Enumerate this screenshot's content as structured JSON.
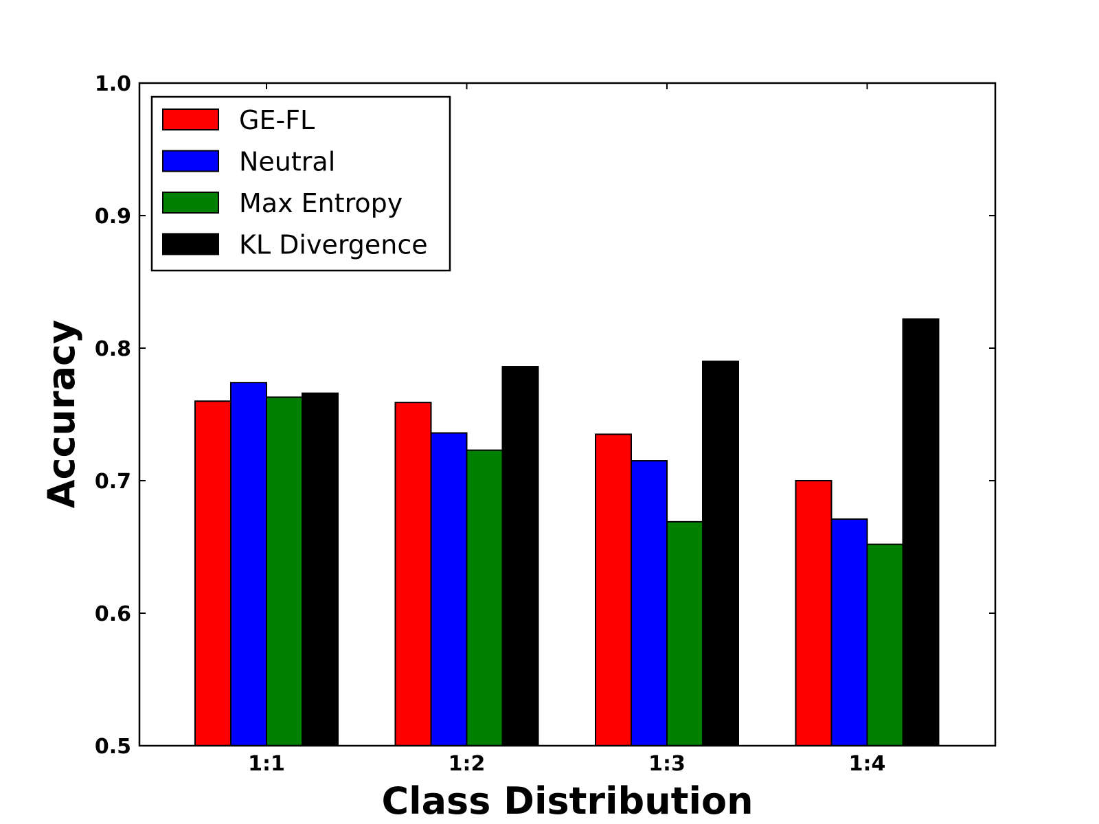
{
  "chart_data": {
    "type": "bar",
    "title": "",
    "xlabel": "Class Distribution",
    "ylabel": "Accuracy",
    "ylim": [
      0.5,
      1.0
    ],
    "yticks": [
      "0.5",
      "0.6",
      "0.7",
      "0.8",
      "0.9",
      "1.0"
    ],
    "categories": [
      "1:1",
      "1:2",
      "1:3",
      "1:4"
    ],
    "legend_position": "top-left",
    "grid": false,
    "series": [
      {
        "name": "GE-FL",
        "color": "#ff0000",
        "values": [
          0.76,
          0.759,
          0.735,
          0.7
        ]
      },
      {
        "name": "Neutral",
        "color": "#0000ff",
        "values": [
          0.774,
          0.736,
          0.715,
          0.671
        ]
      },
      {
        "name": "Max Entropy",
        "color": "#008000",
        "values": [
          0.763,
          0.723,
          0.669,
          0.652
        ]
      },
      {
        "name": "KL Divergence",
        "color": "#000000",
        "values": [
          0.766,
          0.786,
          0.79,
          0.822
        ]
      }
    ]
  }
}
